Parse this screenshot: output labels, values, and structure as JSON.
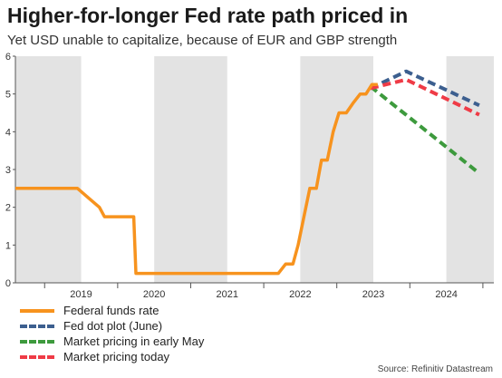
{
  "header": {
    "title": "Higher-for-longer Fed rate path priced in",
    "subtitle": "Yet USD unable to capitalize, because of EUR and GBP strength"
  },
  "source": "Source: Refinitiv Datastream",
  "chart_data": {
    "type": "line",
    "title": "Higher-for-longer Fed rate path priced in",
    "subtitle": "Yet USD unable to capitalize, because of EUR and GBP strength",
    "xlabel": "",
    "ylabel": "",
    "xlim": [
      2018.6,
      2025.15
    ],
    "ylim": [
      0,
      6
    ],
    "y_ticks": [
      0,
      1,
      2,
      3,
      4,
      5,
      6
    ],
    "x_tick_labels": [
      {
        "label": "2019",
        "at": 2019.0
      },
      {
        "label": "2020",
        "at": 2020.0
      },
      {
        "label": "2021",
        "at": 2021.0
      },
      {
        "label": "2022",
        "at": 2022.0
      },
      {
        "label": "2023",
        "at": 2023.0
      },
      {
        "label": "2024",
        "at": 2024.0
      }
    ],
    "shaded_bands": [
      [
        2018.6,
        2019.5
      ],
      [
        2020.5,
        2021.5
      ],
      [
        2022.5,
        2023.5
      ],
      [
        2024.5,
        2025.15
      ]
    ],
    "grid": false,
    "legend_position": "bottom-left",
    "series": [
      {
        "name": "Federal funds rate",
        "color": "#f7931e",
        "style": "solid",
        "points": [
          [
            2018.6,
            2.5
          ],
          [
            2019.0,
            2.5
          ],
          [
            2019.45,
            2.5
          ],
          [
            2019.6,
            2.25
          ],
          [
            2019.75,
            2.0
          ],
          [
            2019.82,
            1.75
          ],
          [
            2020.15,
            1.75
          ],
          [
            2020.22,
            1.75
          ],
          [
            2020.25,
            0.25
          ],
          [
            2021.5,
            0.25
          ],
          [
            2022.2,
            0.25
          ],
          [
            2022.3,
            0.5
          ],
          [
            2022.4,
            0.5
          ],
          [
            2022.47,
            1.0
          ],
          [
            2022.55,
            1.75
          ],
          [
            2022.63,
            2.5
          ],
          [
            2022.72,
            2.5
          ],
          [
            2022.79,
            3.25
          ],
          [
            2022.87,
            3.25
          ],
          [
            2022.95,
            4.0
          ],
          [
            2023.03,
            4.5
          ],
          [
            2023.13,
            4.5
          ],
          [
            2023.22,
            4.75
          ],
          [
            2023.32,
            5.0
          ],
          [
            2023.4,
            5.0
          ],
          [
            2023.48,
            5.25
          ],
          [
            2023.56,
            5.25
          ]
        ]
      },
      {
        "name": "Fed dot plot (June)",
        "color": "#3c5f8f",
        "style": "dashed",
        "points": [
          [
            2023.46,
            5.15
          ],
          [
            2023.95,
            5.6
          ],
          [
            2024.95,
            4.7
          ]
        ]
      },
      {
        "name": "Market pricing in early May",
        "color": "#3d9a3d",
        "style": "dashed",
        "points": [
          [
            2023.46,
            5.2
          ],
          [
            2024.95,
            2.9
          ]
        ]
      },
      {
        "name": "Market pricing today",
        "color": "#ef3b46",
        "style": "dashed",
        "points": [
          [
            2023.46,
            5.15
          ],
          [
            2023.95,
            5.38
          ],
          [
            2024.95,
            4.45
          ]
        ]
      }
    ]
  }
}
